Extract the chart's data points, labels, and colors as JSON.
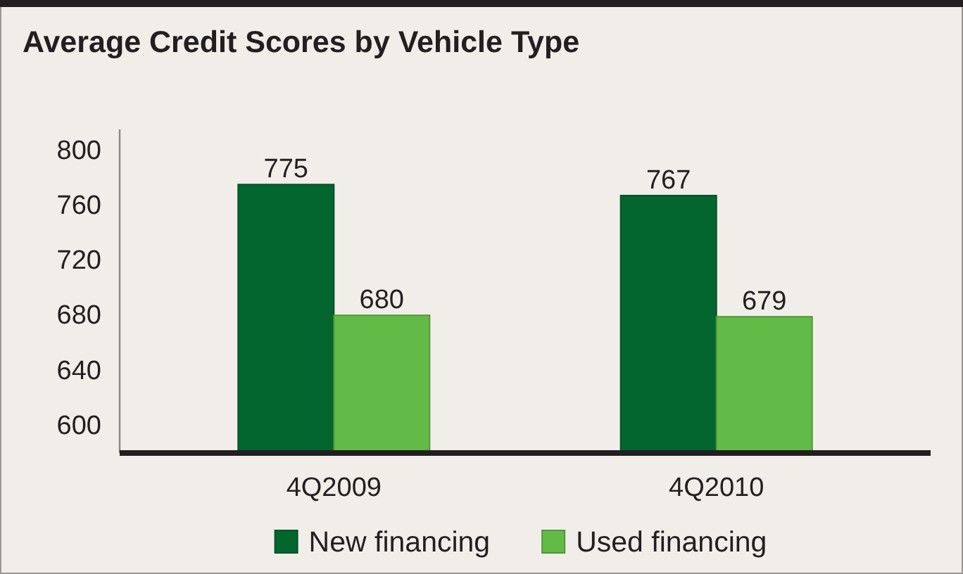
{
  "chart_data": {
    "type": "bar",
    "title": "Average Credit Scores by Vehicle Type",
    "categories": [
      "4Q2009",
      "4Q2010"
    ],
    "series": [
      {
        "name": "New financing",
        "color": "#03662f",
        "values": [
          775,
          767
        ]
      },
      {
        "name": "Used financing",
        "color": "#63bb47",
        "values": [
          680,
          679
        ]
      }
    ],
    "ylim": [
      580,
      815
    ],
    "yticks": [
      600,
      640,
      680,
      720,
      760,
      800
    ],
    "grid": false,
    "legend": "bottom",
    "data_labels": true
  }
}
